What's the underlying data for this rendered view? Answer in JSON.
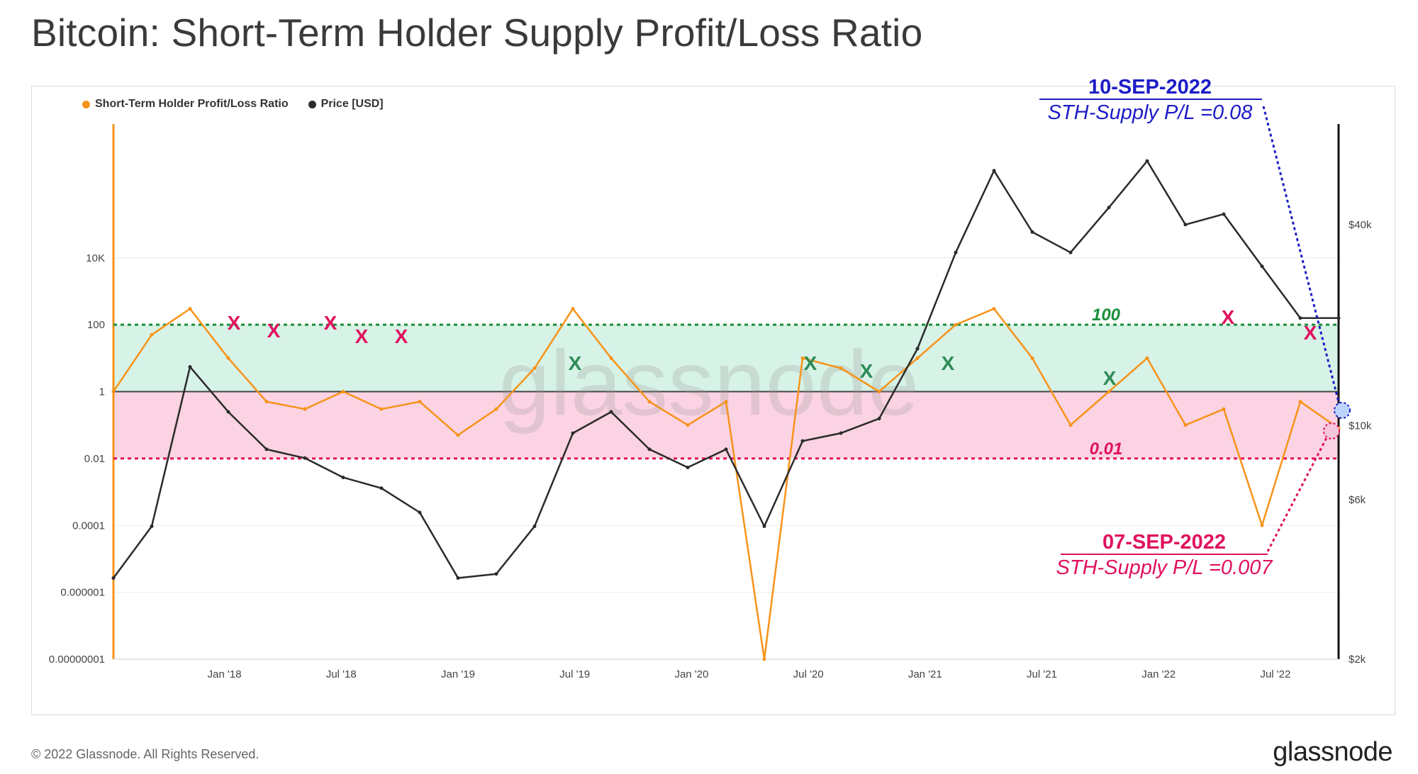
{
  "title": "Bitcoin: Short-Term Holder Supply Profit/Loss Ratio",
  "footer": {
    "copyright": "© 2022 Glassnode. All Rights Reserved.",
    "logo": "glassnode"
  },
  "watermark": "glassnode",
  "colors": {
    "sth": "#f7931a",
    "price": "#2b2b2b",
    "green": "#1a8f3a",
    "pink": "#e0115f",
    "blue": "#1c1cc7",
    "band_green": "#d7f2e6",
    "band_pink": "#fbd3e3"
  },
  "chart_data": {
    "type": "line",
    "x_ticks": [
      "Jan '18",
      "Jul '18",
      "Jan '19",
      "Jul '19",
      "Jan '20",
      "Jul '20",
      "Jan '21",
      "Jul '21",
      "Jan '22",
      "Jul '22"
    ],
    "y_left_ticks": [
      "10K",
      "100",
      "1",
      "0.01",
      "0.0001",
      "0.000001",
      "0.00000001"
    ],
    "y_right_ticks": [
      "$40k",
      "$10k",
      "$6k",
      "$2k"
    ],
    "legend": [
      {
        "name": "Short-Term Holder Profit/Loss Ratio",
        "color": "#f7931a"
      },
      {
        "name": "Price [USD]",
        "color": "#2b2b2b"
      }
    ],
    "levels": [
      {
        "label": "100",
        "value": 100,
        "color": "#1a8f3a"
      },
      {
        "label": "0.01",
        "value": 0.01,
        "color": "#e0115f"
      }
    ],
    "annotations": [
      {
        "date": "10-SEP-2022",
        "text": "STH-Supply P/L =0.08",
        "color": "#1c1cc7"
      },
      {
        "date": "07-SEP-2022",
        "text": "STH-Supply P/L =0.007",
        "color": "#e0115f"
      }
    ],
    "markers": {
      "red_x": [
        "Apr '18",
        "Jun '18",
        "Aug '18",
        "Sep '18",
        "Nov '18",
        "May '22",
        "Aug '22"
      ],
      "green_x": [
        "Jul '19",
        "Jul '20",
        "Sep '20",
        "Jan '21",
        "Oct '21"
      ],
      "symbol": "X"
    },
    "series": [
      {
        "name": "Short-Term Holder Profit/Loss Ratio",
        "x": [
          "Aug '17",
          "Oct '17",
          "Dec '17",
          "Jan '18",
          "Mar '18",
          "May '18",
          "Jul '18",
          "Sep '18",
          "Nov '18",
          "Dec '18",
          "Feb '19",
          "Apr '19",
          "Jun '19",
          "Jul '19",
          "Sep '19",
          "Nov '19",
          "Jan '20",
          "Mar '20",
          "May '20",
          "Jul '20",
          "Sep '20",
          "Nov '20",
          "Jan '21",
          "Mar '21",
          "May '21",
          "Jul '21",
          "Sep '21",
          "Nov '21",
          "Jan '22",
          "Mar '22",
          "May '22",
          "Jul '22",
          "Sep '22"
        ],
        "values": [
          1,
          50,
          300,
          10,
          0.5,
          0.3,
          1,
          0.3,
          0.5,
          0.05,
          0.3,
          5,
          300,
          10,
          0.5,
          0.1,
          0.5,
          1e-08,
          10,
          5,
          1,
          10,
          100,
          300,
          10,
          0.1,
          1,
          10,
          0.1,
          0.3,
          0.0001,
          0.5,
          0.08
        ]
      },
      {
        "name": "Price [USD]",
        "x": [
          "Aug '17",
          "Oct '17",
          "Dec '17",
          "Jan '18",
          "Mar '18",
          "May '18",
          "Jul '18",
          "Sep '18",
          "Nov '18",
          "Dec '18",
          "Feb '19",
          "Apr '19",
          "Jun '19",
          "Jul '19",
          "Sep '19",
          "Nov '19",
          "Jan '20",
          "Mar '20",
          "May '20",
          "Jul '20",
          "Sep '20",
          "Nov '20",
          "Jan '21",
          "Mar '21",
          "May '21",
          "Jul '21",
          "Sep '21",
          "Nov '21",
          "Jan '22",
          "Mar '22",
          "May '22",
          "Jul '22",
          "Sep '22"
        ],
        "values": [
          3500,
          5000,
          15000,
          11000,
          8500,
          8000,
          7000,
          6500,
          5500,
          3500,
          3600,
          5000,
          9500,
          11000,
          8500,
          7500,
          8500,
          5000,
          9000,
          9500,
          10500,
          17000,
          33000,
          58000,
          38000,
          33000,
          45000,
          62000,
          40000,
          43000,
          30000,
          21000,
          21000
        ]
      }
    ]
  }
}
